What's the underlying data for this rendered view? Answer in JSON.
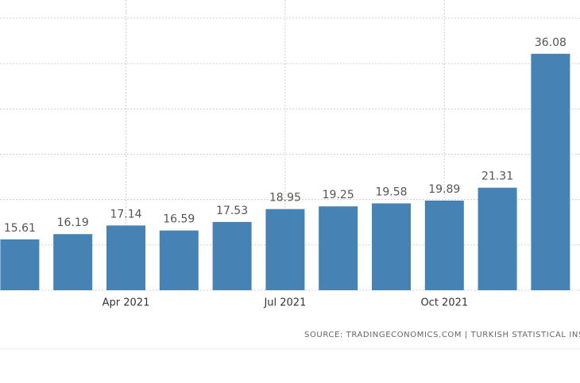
{
  "chart_data": {
    "type": "bar",
    "categories": [
      null,
      null,
      "Apr 2021",
      null,
      null,
      "Jul 2021",
      null,
      null,
      "Oct 2021",
      null,
      null
    ],
    "values": [
      15.61,
      16.19,
      17.14,
      16.59,
      17.53,
      18.95,
      19.25,
      19.58,
      19.89,
      21.31,
      36.08
    ],
    "color": "#4682b4",
    "ylim": [
      10,
      40
    ],
    "yticks": [
      10,
      15,
      20,
      25,
      30,
      35,
      40
    ],
    "grid": true,
    "source": "SOURCE: TRADINGECONOMICS.COM | TURKISH STATISTICAL INS"
  }
}
